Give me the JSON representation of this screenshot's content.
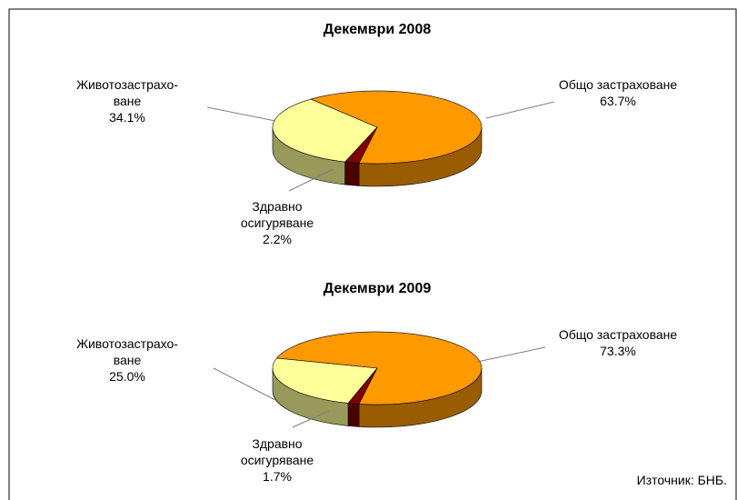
{
  "chart_data": [
    {
      "type": "pie",
      "title": "Декември 2008",
      "categories": [
        "Общо застраховане",
        "Здравно\nосигуряване",
        "Животозастрахо-\nване"
      ],
      "values": [
        63.7,
        2.2,
        34.1
      ],
      "value_labels": [
        "63.7%",
        "2.2%",
        "34.1%"
      ],
      "colors": [
        "#ff9900",
        "#800000",
        "#ffff99"
      ]
    },
    {
      "type": "pie",
      "title": "Декември 2009",
      "categories": [
        "Общо застраховане",
        "Здравно\nосигуряване",
        "Животозастрахо-\nване"
      ],
      "values": [
        73.3,
        1.7,
        25.0
      ],
      "value_labels": [
        "73.3%",
        "1.7%",
        "25.0%"
      ],
      "colors": [
        "#ff9900",
        "#800000",
        "#ffff99"
      ]
    }
  ],
  "source": "Източник: БНБ."
}
